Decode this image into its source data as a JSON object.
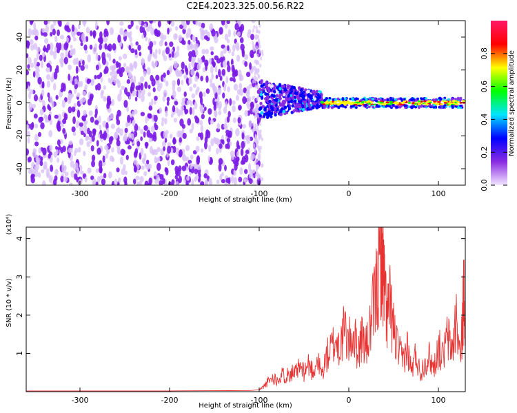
{
  "title": "C2E4.2023.325.00.56.R22",
  "colors": {
    "snr_line": "#e83333",
    "spectrogram_main": "#7a1ae6",
    "spectrogram_light": "#d9c2f7",
    "colorbar": [
      "#f2e6ff",
      "#8a2be2",
      "#0000ff",
      "#00e5ff",
      "#00ff00",
      "#ffff00",
      "#ff0000",
      "#ff1a66"
    ]
  },
  "chart_data": [
    {
      "type": "heatmap",
      "name": "spectrogram",
      "xlabel": "Height of straight line (km)",
      "ylabel": "Frequency (Hz)",
      "xlim": [
        -360,
        130
      ],
      "ylim": [
        -50,
        50
      ],
      "xticks": [
        -300,
        -200,
        -100,
        0,
        100
      ],
      "yticks": [
        -40,
        -20,
        0,
        20,
        40
      ],
      "colorbar": {
        "label": "Normalized spectral amplitude",
        "range": [
          0,
          1
        ],
        "ticks": [
          "0.0",
          "0.2",
          "0.4",
          "0.6",
          "0.8"
        ]
      },
      "regions": [
        {
          "x_range": [
            -360,
            -100
          ],
          "freq_range": [
            -50,
            50
          ],
          "amplitude": "0.0-0.1 (broadband noise)"
        },
        {
          "x_range": [
            -100,
            -30
          ],
          "freq_range": [
            -12,
            12
          ],
          "amplitude": "0.2-0.5"
        },
        {
          "x_range": [
            -30,
            130
          ],
          "freq_range": [
            -3,
            3
          ],
          "amplitude": "0.3-1.0 (narrow line at 0 Hz)"
        }
      ]
    },
    {
      "type": "line",
      "name": "snr",
      "xlabel": "Height of straight line (km)",
      "ylabel": "SNR (10 * v/v)",
      "y_multiplier": "(x10⁴)",
      "xlim": [
        -360,
        130
      ],
      "ylim": [
        0,
        4.3
      ],
      "xticks": [
        -300,
        -200,
        -100,
        0,
        100
      ],
      "yticks": [
        1,
        2,
        3,
        4
      ],
      "series": [
        {
          "x": [
            -360,
            -300,
            -200,
            -110,
            -100,
            -95,
            -90,
            -85,
            -80,
            -75,
            -70,
            -65,
            -60,
            -55,
            -50,
            -45,
            -40,
            -35,
            -30,
            -25,
            -20,
            -15,
            -10,
            -5,
            0,
            5,
            10,
            15,
            20,
            25,
            30,
            33,
            36,
            38,
            40,
            43,
            46,
            50,
            55,
            60,
            65,
            70,
            75,
            80,
            85,
            90,
            95,
            100,
            105,
            110,
            115,
            120,
            125,
            128,
            130
          ],
          "y": [
            0.02,
            0.02,
            0.02,
            0.03,
            0.05,
            0.15,
            0.3,
            0.4,
            0.35,
            0.5,
            0.45,
            0.6,
            0.5,
            0.7,
            0.55,
            0.8,
            0.6,
            0.9,
            0.5,
            1.0,
            1.2,
            1.5,
            1.3,
            1.8,
            1.4,
            1.7,
            1.2,
            1.6,
            1.3,
            2.0,
            2.8,
            3.2,
            4.2,
            3.6,
            2.9,
            2.2,
            2.5,
            1.8,
            1.2,
            0.9,
            1.3,
            0.6,
            1.1,
            0.5,
            0.9,
            1.0,
            0.7,
            1.3,
            1.0,
            1.6,
            1.2,
            2.1,
            0.9,
            2.8,
            2.4
          ]
        }
      ]
    }
  ]
}
